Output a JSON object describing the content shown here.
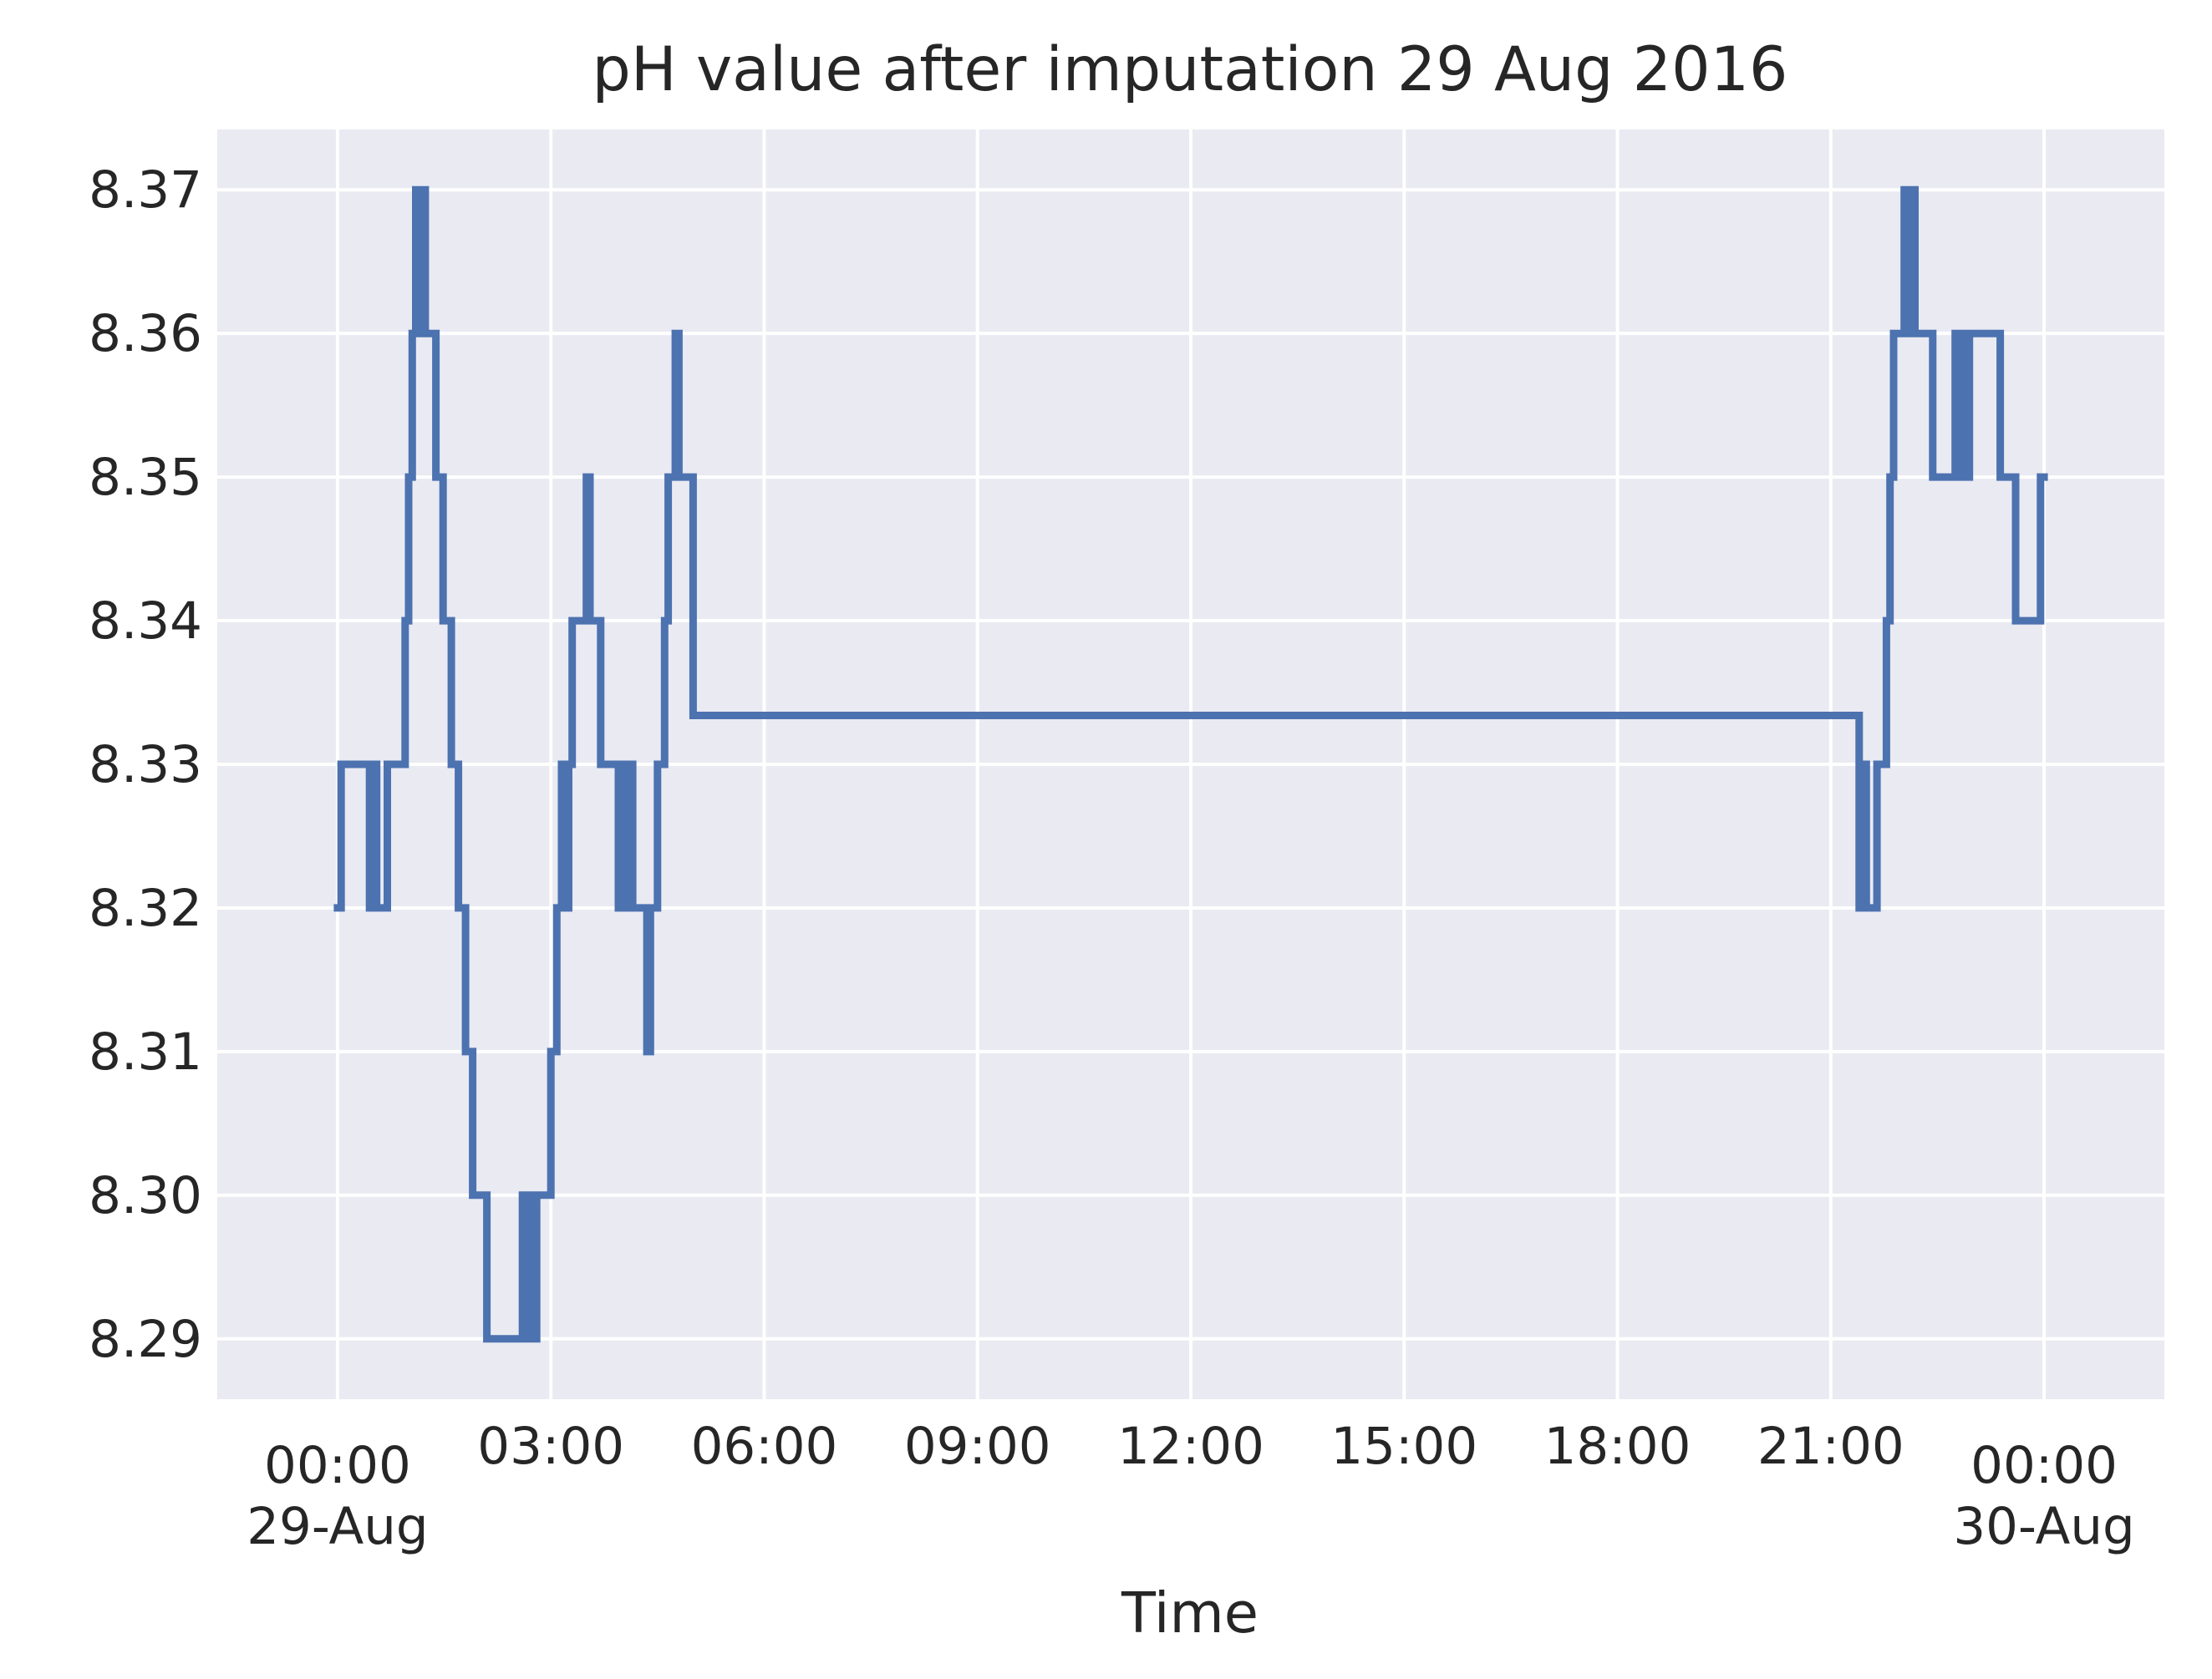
{
  "chart_data": {
    "type": "line",
    "title": "pH value after imputation 29 Aug 2016",
    "xlabel": "Time",
    "ylabel": "",
    "x_unit": "datetime",
    "xlim": [
      "2016-08-29 -0:27",
      "2016-08-30 00:27"
    ],
    "ylim": [
      8.2858,
      8.3742
    ],
    "grid": true,
    "legend": "none",
    "colors": {
      "line": "#4c72b0",
      "plot_bg": "#eaeaf2",
      "grid": "#ffffff",
      "text": "#262626"
    },
    "x_ticks": [
      {
        "value": "00:00",
        "label": "00:00",
        "sublabel": "29-Aug"
      },
      {
        "value": "03:00",
        "label": "03:00",
        "sublabel": ""
      },
      {
        "value": "06:00",
        "label": "06:00",
        "sublabel": ""
      },
      {
        "value": "09:00",
        "label": "09:00",
        "sublabel": ""
      },
      {
        "value": "12:00",
        "label": "12:00",
        "sublabel": ""
      },
      {
        "value": "15:00",
        "label": "15:00",
        "sublabel": ""
      },
      {
        "value": "18:00",
        "label": "18:00",
        "sublabel": ""
      },
      {
        "value": "21:00",
        "label": "21:00",
        "sublabel": ""
      },
      {
        "value": "24:00",
        "label": "00:00",
        "sublabel": "30-Aug"
      }
    ],
    "y_ticks": [
      {
        "value": 8.29,
        "label": "8.29"
      },
      {
        "value": 8.3,
        "label": "8.30"
      },
      {
        "value": 8.31,
        "label": "8.31"
      },
      {
        "value": 8.32,
        "label": "8.32"
      },
      {
        "value": 8.33,
        "label": "8.33"
      },
      {
        "value": 8.34,
        "label": "8.34"
      },
      {
        "value": 8.35,
        "label": "8.35"
      },
      {
        "value": 8.36,
        "label": "8.36"
      },
      {
        "value": 8.37,
        "label": "8.37"
      }
    ],
    "series": [
      {
        "name": "",
        "points": [
          [
            "00:00",
            8.32
          ],
          [
            "00:03",
            8.32
          ],
          [
            "00:03",
            8.33
          ],
          [
            "00:27",
            8.33
          ],
          [
            "00:27",
            8.32
          ],
          [
            "00:30",
            8.32
          ],
          [
            "00:30",
            8.33
          ],
          [
            "00:33",
            8.33
          ],
          [
            "00:33",
            8.32
          ],
          [
            "00:42",
            8.32
          ],
          [
            "00:42",
            8.33
          ],
          [
            "00:57",
            8.33
          ],
          [
            "00:57",
            8.34
          ],
          [
            "01:00",
            8.34
          ],
          [
            "01:00",
            8.35
          ],
          [
            "01:03",
            8.35
          ],
          [
            "01:03",
            8.36
          ],
          [
            "01:06",
            8.36
          ],
          [
            "01:06",
            8.37
          ],
          [
            "01:09",
            8.37
          ],
          [
            "01:09",
            8.36
          ],
          [
            "01:11",
            8.36
          ],
          [
            "01:11",
            8.37
          ],
          [
            "01:14",
            8.37
          ],
          [
            "01:14",
            8.36
          ],
          [
            "01:23",
            8.36
          ],
          [
            "01:23",
            8.35
          ],
          [
            "01:29",
            8.35
          ],
          [
            "01:29",
            8.34
          ],
          [
            "01:36",
            8.34
          ],
          [
            "01:36",
            8.33
          ],
          [
            "01:42",
            8.33
          ],
          [
            "01:42",
            8.32
          ],
          [
            "01:48",
            8.32
          ],
          [
            "01:48",
            8.31
          ],
          [
            "01:54",
            8.31
          ],
          [
            "01:54",
            8.3
          ],
          [
            "02:06",
            8.3
          ],
          [
            "02:06",
            8.29
          ],
          [
            "02:36",
            8.29
          ],
          [
            "02:36",
            8.3
          ],
          [
            "02:39",
            8.3
          ],
          [
            "02:39",
            8.29
          ],
          [
            "02:42",
            8.29
          ],
          [
            "02:42",
            8.3
          ],
          [
            "02:45",
            8.3
          ],
          [
            "02:45",
            8.29
          ],
          [
            "02:48",
            8.29
          ],
          [
            "02:48",
            8.3
          ],
          [
            "03:00",
            8.3
          ],
          [
            "03:00",
            8.31
          ],
          [
            "03:05",
            8.31
          ],
          [
            "03:05",
            8.32
          ],
          [
            "03:09",
            8.32
          ],
          [
            "03:09",
            8.33
          ],
          [
            "03:12",
            8.33
          ],
          [
            "03:12",
            8.32
          ],
          [
            "03:15",
            8.32
          ],
          [
            "03:15",
            8.33
          ],
          [
            "03:18",
            8.33
          ],
          [
            "03:18",
            8.34
          ],
          [
            "03:30",
            8.34
          ],
          [
            "03:30",
            8.35
          ],
          [
            "03:33",
            8.35
          ],
          [
            "03:33",
            8.34
          ],
          [
            "03:42",
            8.34
          ],
          [
            "03:42",
            8.33
          ],
          [
            "03:57",
            8.33
          ],
          [
            "03:57",
            8.32
          ],
          [
            "04:00",
            8.32
          ],
          [
            "04:00",
            8.33
          ],
          [
            "04:03",
            8.33
          ],
          [
            "04:03",
            8.32
          ],
          [
            "04:06",
            8.32
          ],
          [
            "04:06",
            8.33
          ],
          [
            "04:09",
            8.33
          ],
          [
            "04:09",
            8.32
          ],
          [
            "04:21",
            8.32
          ],
          [
            "04:21",
            8.31
          ],
          [
            "04:24",
            8.31
          ],
          [
            "04:24",
            8.32
          ],
          [
            "04:30",
            8.32
          ],
          [
            "04:30",
            8.33
          ],
          [
            "04:36",
            8.33
          ],
          [
            "04:36",
            8.34
          ],
          [
            "04:39",
            8.34
          ],
          [
            "04:39",
            8.35
          ],
          [
            "04:45",
            8.35
          ],
          [
            "04:45",
            8.36
          ],
          [
            "04:48",
            8.36
          ],
          [
            "04:48",
            8.35
          ],
          [
            "05:00",
            8.35
          ],
          [
            "05:00",
            8.3334
          ],
          [
            "21:24",
            8.3334
          ],
          [
            "21:24",
            8.32
          ],
          [
            "21:27",
            8.32
          ],
          [
            "21:27",
            8.33
          ],
          [
            "21:30",
            8.33
          ],
          [
            "21:30",
            8.32
          ],
          [
            "21:39",
            8.32
          ],
          [
            "21:39",
            8.33
          ],
          [
            "21:47",
            8.33
          ],
          [
            "21:47",
            8.34
          ],
          [
            "21:50",
            8.34
          ],
          [
            "21:50",
            8.35
          ],
          [
            "21:53",
            8.35
          ],
          [
            "21:53",
            8.36
          ],
          [
            "22:02",
            8.36
          ],
          [
            "22:02",
            8.37
          ],
          [
            "22:05",
            8.37
          ],
          [
            "22:05",
            8.36
          ],
          [
            "22:07",
            8.36
          ],
          [
            "22:07",
            8.37
          ],
          [
            "22:11",
            8.37
          ],
          [
            "22:11",
            8.36
          ],
          [
            "22:26",
            8.36
          ],
          [
            "22:26",
            8.35
          ],
          [
            "22:45",
            8.35
          ],
          [
            "22:45",
            8.36
          ],
          [
            "22:48",
            8.36
          ],
          [
            "22:48",
            8.35
          ],
          [
            "22:51",
            8.35
          ],
          [
            "22:51",
            8.36
          ],
          [
            "22:54",
            8.36
          ],
          [
            "22:54",
            8.35
          ],
          [
            "22:57",
            8.35
          ],
          [
            "22:57",
            8.36
          ],
          [
            "23:23",
            8.36
          ],
          [
            "23:23",
            8.35
          ],
          [
            "23:36",
            8.35
          ],
          [
            "23:36",
            8.34
          ],
          [
            "23:57",
            8.34
          ],
          [
            "23:57",
            8.35
          ],
          [
            "24:00",
            8.35
          ]
        ]
      }
    ]
  }
}
